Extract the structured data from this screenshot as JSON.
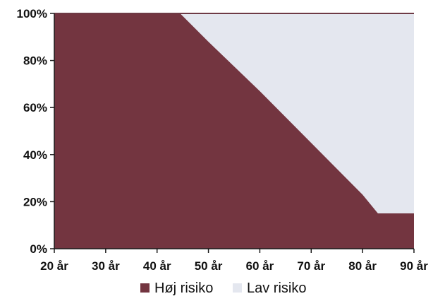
{
  "chart_data": {
    "type": "area",
    "stacked": true,
    "percent": true,
    "x": [
      20,
      30,
      40,
      44.5,
      50,
      60,
      70,
      80,
      83,
      90
    ],
    "x_tick_labels": [
      "20 år",
      "30 år",
      "40 år",
      "50 år",
      "60 år",
      "70 år",
      "80 år",
      "90 år"
    ],
    "x_ticks": [
      20,
      30,
      40,
      50,
      60,
      70,
      80,
      90
    ],
    "y_tick_labels": [
      "0%",
      "20%",
      "40%",
      "60%",
      "80%",
      "100%"
    ],
    "y_ticks": [
      0,
      20,
      40,
      60,
      80,
      100
    ],
    "xlim": [
      20,
      90
    ],
    "ylim": [
      0,
      100
    ],
    "series": [
      {
        "name": "Høj risiko",
        "color": "#733540",
        "values": [
          100,
          100,
          100,
          100,
          88,
          67,
          45,
          23,
          15,
          15
        ]
      },
      {
        "name": "Lav risiko",
        "color": "#e4e7ef",
        "values": [
          0,
          0,
          0,
          0,
          12,
          33,
          55,
          77,
          85,
          85
        ]
      }
    ],
    "title": "",
    "xlabel": "",
    "ylabel": "",
    "grid": false,
    "legend_position": "bottom"
  }
}
